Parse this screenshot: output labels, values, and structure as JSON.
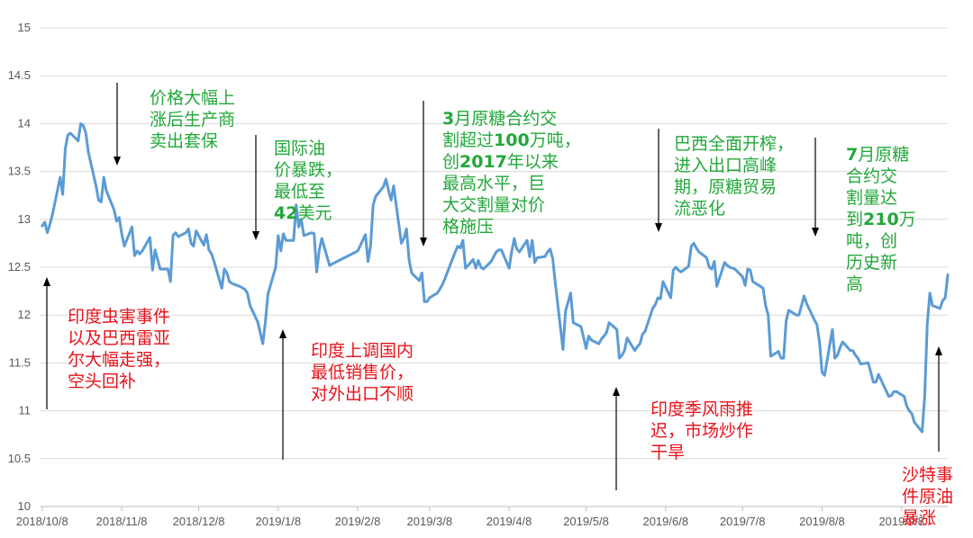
{
  "chart_data": {
    "type": "line",
    "title": "",
    "xlabel": "",
    "ylabel": "",
    "ylim": [
      10,
      15
    ],
    "y_ticks": [
      "15",
      "14.5",
      "14",
      "13.5",
      "13",
      "12.5",
      "12",
      "11.5",
      "11",
      "10.5",
      "10"
    ],
    "x_ticks": [
      "2018/10/8",
      "2018/11/8",
      "2018/12/8",
      "2019/1/8",
      "2019/2/8",
      "2019/3/8",
      "2019/4/8",
      "2019/5/8",
      "2019/6/8",
      "2019/7/8",
      "2019/8/8",
      "2019/9/8"
    ],
    "x_tick_dates": [
      "2018-10-08",
      "2018-11-08",
      "2018-12-08",
      "2019-01-08",
      "2019-02-08",
      "2019-03-08",
      "2019-04-08",
      "2019-05-08",
      "2019-06-08",
      "2019-07-08",
      "2019-08-08",
      "2019-09-08"
    ],
    "x_range": [
      "2018-10-07",
      "2019-09-26"
    ],
    "grid": true,
    "line_color": "#5b9bd5",
    "series": [
      {
        "x": [
          "2018-10-08",
          "2018-10-09",
          "2018-10-10",
          "2018-10-11",
          "2018-10-12",
          "2018-10-15",
          "2018-10-16",
          "2018-10-17",
          "2018-10-18",
          "2018-10-19",
          "2018-10-22",
          "2018-10-23",
          "2018-10-24",
          "2018-10-25",
          "2018-10-26",
          "2018-10-29",
          "2018-10-30",
          "2018-10-31",
          "2018-11-01",
          "2018-11-02",
          "2018-11-05",
          "2018-11-06",
          "2018-11-07",
          "2018-11-08",
          "2018-11-09",
          "2018-11-12",
          "2018-11-13",
          "2018-11-14",
          "2018-11-15",
          "2018-11-16",
          "2018-11-19",
          "2018-11-20",
          "2018-11-21",
          "2018-11-22",
          "2018-11-23",
          "2018-11-26",
          "2018-11-27",
          "2018-11-28",
          "2018-11-29",
          "2018-11-30",
          "2018-12-03",
          "2018-12-04",
          "2018-12-05",
          "2018-12-06",
          "2018-12-07",
          "2018-12-10",
          "2018-12-11",
          "2018-12-12",
          "2018-12-13",
          "2018-12-14",
          "2018-12-17",
          "2018-12-18",
          "2018-12-19",
          "2018-12-20",
          "2018-12-21",
          "2018-12-24",
          "2018-12-26",
          "2018-12-27",
          "2018-12-28",
          "2018-12-31",
          "2019-01-02",
          "2019-01-03",
          "2019-01-04",
          "2019-01-07",
          "2019-01-08",
          "2019-01-09",
          "2019-01-10",
          "2019-01-11",
          "2019-01-14",
          "2019-01-15",
          "2019-01-16",
          "2019-01-17",
          "2019-01-18",
          "2019-01-21",
          "2019-01-22",
          "2019-01-23",
          "2019-01-24",
          "2019-01-25",
          "2019-01-28",
          "2019-02-08",
          "2019-02-11",
          "2019-02-12",
          "2019-02-13",
          "2019-02-14",
          "2019-02-15",
          "2019-02-18",
          "2019-02-19",
          "2019-02-20",
          "2019-02-21",
          "2019-02-22",
          "2019-02-25",
          "2019-02-26",
          "2019-02-27",
          "2019-02-28",
          "2019-03-01",
          "2019-03-04",
          "2019-03-05",
          "2019-03-06",
          "2019-03-07",
          "2019-03-08",
          "2019-03-11",
          "2019-03-12",
          "2019-03-13",
          "2019-03-14",
          "2019-03-15",
          "2019-03-18",
          "2019-03-19",
          "2019-03-20",
          "2019-03-21",
          "2019-03-22",
          "2019-03-25",
          "2019-03-26",
          "2019-03-27",
          "2019-03-28",
          "2019-03-29",
          "2019-04-01",
          "2019-04-02",
          "2019-04-03",
          "2019-04-04",
          "2019-04-05",
          "2019-04-08",
          "2019-04-09",
          "2019-04-10",
          "2019-04-11",
          "2019-04-12",
          "2019-04-15",
          "2019-04-16",
          "2019-04-17",
          "2019-04-18",
          "2019-04-19",
          "2019-04-22",
          "2019-04-23",
          "2019-04-24",
          "2019-04-25",
          "2019-04-26",
          "2019-04-29",
          "2019-04-30",
          "2019-05-02",
          "2019-05-03",
          "2019-05-06",
          "2019-05-07",
          "2019-05-08",
          "2019-05-09",
          "2019-05-10",
          "2019-05-13",
          "2019-05-14",
          "2019-05-15",
          "2019-05-16",
          "2019-05-17",
          "2019-05-20",
          "2019-05-21",
          "2019-05-22",
          "2019-05-23",
          "2019-05-24",
          "2019-05-27",
          "2019-05-28",
          "2019-05-29",
          "2019-05-30",
          "2019-05-31",
          "2019-06-03",
          "2019-06-04",
          "2019-06-05",
          "2019-06-06",
          "2019-06-07",
          "2019-06-10",
          "2019-06-11",
          "2019-06-12",
          "2019-06-13",
          "2019-06-14",
          "2019-06-17",
          "2019-06-18",
          "2019-06-19",
          "2019-06-20",
          "2019-06-21",
          "2019-06-24",
          "2019-06-25",
          "2019-06-26",
          "2019-06-27",
          "2019-06-28",
          "2019-07-01",
          "2019-07-02",
          "2019-07-03",
          "2019-07-05",
          "2019-07-08",
          "2019-07-09",
          "2019-07-10",
          "2019-07-11",
          "2019-07-12",
          "2019-07-15",
          "2019-07-16",
          "2019-07-17",
          "2019-07-18",
          "2019-07-19",
          "2019-07-22",
          "2019-07-23",
          "2019-07-24",
          "2019-07-25",
          "2019-07-26",
          "2019-07-29",
          "2019-07-30",
          "2019-07-31",
          "2019-08-01",
          "2019-08-02",
          "2019-08-05",
          "2019-08-06",
          "2019-08-07",
          "2019-08-08",
          "2019-08-09",
          "2019-08-12",
          "2019-08-13",
          "2019-08-14",
          "2019-08-15",
          "2019-08-16",
          "2019-08-19",
          "2019-08-20",
          "2019-08-21",
          "2019-08-22",
          "2019-08-23",
          "2019-08-26",
          "2019-08-27",
          "2019-08-28",
          "2019-08-29",
          "2019-08-30",
          "2019-09-03",
          "2019-09-04",
          "2019-09-05",
          "2019-09-06",
          "2019-09-09",
          "2019-09-10",
          "2019-09-11",
          "2019-09-12",
          "2019-09-13",
          "2019-09-16",
          "2019-09-17",
          "2019-09-18",
          "2019-09-19",
          "2019-09-20",
          "2019-09-23",
          "2019-09-24",
          "2019-09-25",
          "2019-09-26"
        ],
        "y": [
          12.93,
          12.97,
          12.86,
          12.95,
          13.05,
          13.44,
          13.26,
          13.74,
          13.88,
          13.9,
          13.82,
          14.0,
          13.98,
          13.9,
          13.7,
          13.35,
          13.2,
          13.18,
          13.44,
          13.3,
          13.1,
          12.98,
          13.02,
          12.85,
          12.72,
          12.92,
          12.62,
          12.67,
          12.64,
          12.67,
          12.81,
          12.47,
          12.68,
          12.58,
          12.48,
          12.48,
          12.35,
          12.83,
          12.86,
          12.82,
          12.86,
          12.9,
          12.75,
          12.72,
          12.88,
          12.73,
          12.84,
          12.68,
          12.64,
          12.56,
          12.28,
          12.48,
          12.44,
          12.35,
          12.33,
          12.3,
          12.27,
          12.23,
          12.1,
          11.93,
          11.7,
          11.93,
          12.22,
          12.5,
          12.83,
          12.67,
          12.85,
          12.78,
          12.78,
          13.15,
          12.92,
          13.0,
          12.83,
          12.86,
          12.85,
          12.45,
          12.68,
          12.8,
          12.52,
          12.67,
          12.84,
          12.56,
          12.72,
          13.15,
          13.24,
          13.34,
          13.42,
          13.3,
          13.2,
          13.35,
          12.75,
          12.8,
          12.9,
          12.58,
          12.44,
          12.36,
          12.44,
          12.14,
          12.14,
          12.18,
          12.23,
          12.27,
          12.32,
          12.38,
          12.45,
          12.66,
          12.72,
          12.7,
          12.78,
          12.49,
          12.58,
          12.49,
          12.57,
          12.5,
          12.48,
          12.56,
          12.61,
          12.66,
          12.68,
          12.68,
          12.49,
          12.66,
          12.8,
          12.69,
          12.66,
          12.78,
          12.61,
          12.78,
          12.55,
          12.6,
          12.61,
          12.66,
          12.69,
          12.59,
          12.34,
          11.64,
          12.04,
          12.23,
          11.92,
          11.88,
          11.77,
          11.65,
          11.78,
          11.74,
          11.7,
          11.75,
          11.78,
          11.82,
          11.92,
          11.85,
          11.55,
          11.58,
          11.63,
          11.76,
          11.63,
          11.67,
          11.7,
          11.8,
          11.83,
          12.07,
          12.11,
          12.18,
          12.17,
          12.35,
          12.18,
          12.47,
          12.5,
          12.47,
          12.45,
          12.51,
          12.72,
          12.75,
          12.7,
          12.66,
          12.6,
          12.5,
          12.48,
          12.56,
          12.3,
          12.55,
          12.52,
          12.5,
          12.48,
          12.4,
          12.31,
          12.48,
          12.47,
          12.35,
          12.3,
          12.28,
          12.1,
          12.0,
          11.57,
          11.62,
          11.55,
          11.55,
          11.94,
          12.05,
          12.0,
          12.0,
          12.1,
          12.2,
          12.12,
          11.95,
          11.9,
          11.72,
          11.4,
          11.37,
          11.85,
          11.55,
          11.58,
          11.66,
          11.72,
          11.63,
          11.63,
          11.58,
          11.55,
          11.49,
          11.5,
          11.4,
          11.3,
          11.3,
          11.38,
          11.15,
          11.16,
          11.2,
          11.2,
          11.15,
          11.05,
          11.0,
          10.97,
          10.88,
          10.78,
          11.15,
          11.9,
          12.23,
          12.1,
          12.07,
          12.15,
          12.18,
          12.42
        ]
      }
    ],
    "annotations": {
      "a1": {
        "lines": [
          [
            "价格大幅上"
          ],
          [
            "涨后生产商"
          ],
          [
            "卖出套保"
          ]
        ]
      },
      "a2": {
        "lines": [
          [
            "国际油"
          ],
          [
            "价暴跌，"
          ],
          [
            "最低至"
          ],
          [
            "42",
            "美元"
          ]
        ]
      },
      "a3": {
        "lines": [
          [
            "3",
            "月原糖合约交"
          ],
          [
            "割超过",
            "100",
            "万吨，"
          ],
          [
            "创",
            "2017",
            "年以来"
          ],
          [
            "最高水平，巨"
          ],
          [
            "大交割量对价"
          ],
          [
            "格施压"
          ]
        ]
      },
      "a4": {
        "lines": [
          [
            "巴西全面开榨，"
          ],
          [
            "进入出口高峰"
          ],
          [
            "期，原糖贸易"
          ],
          [
            "流恶化"
          ]
        ]
      },
      "a5": {
        "lines": [
          [
            "7",
            "月原糖"
          ],
          [
            "合约交"
          ],
          [
            "割量达"
          ],
          [
            "到",
            "210",
            "万"
          ],
          [
            "吨，创"
          ],
          [
            "历史新"
          ],
          [
            "高"
          ]
        ]
      },
      "a6": {
        "lines": [
          [
            "印度虫害事件"
          ],
          [
            "以及巴西雷亚"
          ],
          [
            "尔大幅走强，"
          ],
          [
            "空头回补"
          ]
        ]
      },
      "a7": {
        "lines": [
          [
            "印度上调国内"
          ],
          [
            "最低销售价，"
          ],
          [
            "对外出口不顺"
          ]
        ]
      },
      "a8": {
        "lines": [
          [
            "印度季风雨推"
          ],
          [
            "迟，市场炒作"
          ],
          [
            "干旱"
          ]
        ]
      },
      "a9": {
        "lines": [
          [
            "沙特事"
          ],
          [
            "件原油"
          ],
          [
            "暴涨"
          ]
        ]
      }
    }
  }
}
